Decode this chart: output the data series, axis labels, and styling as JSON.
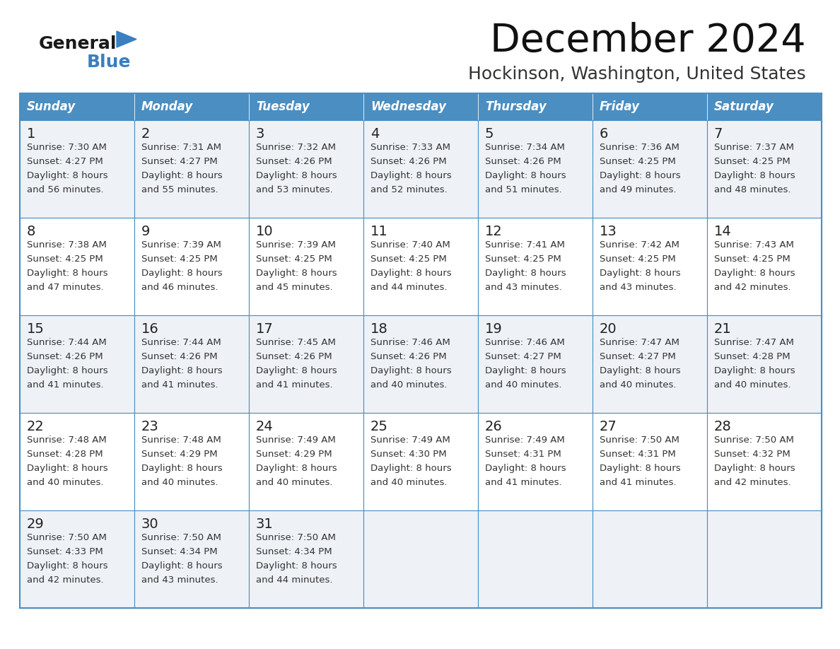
{
  "title": "December 2024",
  "subtitle": "Hockinson, Washington, United States",
  "days_of_week": [
    "Sunday",
    "Monday",
    "Tuesday",
    "Wednesday",
    "Thursday",
    "Friday",
    "Saturday"
  ],
  "header_bg": "#4a8ec2",
  "header_text": "#ffffff",
  "cell_bg_light": "#eef2f7",
  "cell_bg_white": "#ffffff",
  "border_color": "#4a8ec2",
  "day_num_color": "#222222",
  "cell_text_color": "#333333",
  "title_color": "#111111",
  "subtitle_color": "#333333",
  "logo_black": "#1a1a1a",
  "logo_blue": "#3a7fc1",
  "calendar_data": [
    [
      {
        "day": "1",
        "sunrise": "7:30 AM",
        "sunset": "4:27 PM",
        "dl1": "8 hours",
        "dl2": "and 56 minutes."
      },
      {
        "day": "2",
        "sunrise": "7:31 AM",
        "sunset": "4:27 PM",
        "dl1": "8 hours",
        "dl2": "and 55 minutes."
      },
      {
        "day": "3",
        "sunrise": "7:32 AM",
        "sunset": "4:26 PM",
        "dl1": "8 hours",
        "dl2": "and 53 minutes."
      },
      {
        "day": "4",
        "sunrise": "7:33 AM",
        "sunset": "4:26 PM",
        "dl1": "8 hours",
        "dl2": "and 52 minutes."
      },
      {
        "day": "5",
        "sunrise": "7:34 AM",
        "sunset": "4:26 PM",
        "dl1": "8 hours",
        "dl2": "and 51 minutes."
      },
      {
        "day": "6",
        "sunrise": "7:36 AM",
        "sunset": "4:25 PM",
        "dl1": "8 hours",
        "dl2": "and 49 minutes."
      },
      {
        "day": "7",
        "sunrise": "7:37 AM",
        "sunset": "4:25 PM",
        "dl1": "8 hours",
        "dl2": "and 48 minutes."
      }
    ],
    [
      {
        "day": "8",
        "sunrise": "7:38 AM",
        "sunset": "4:25 PM",
        "dl1": "8 hours",
        "dl2": "and 47 minutes."
      },
      {
        "day": "9",
        "sunrise": "7:39 AM",
        "sunset": "4:25 PM",
        "dl1": "8 hours",
        "dl2": "and 46 minutes."
      },
      {
        "day": "10",
        "sunrise": "7:39 AM",
        "sunset": "4:25 PM",
        "dl1": "8 hours",
        "dl2": "and 45 minutes."
      },
      {
        "day": "11",
        "sunrise": "7:40 AM",
        "sunset": "4:25 PM",
        "dl1": "8 hours",
        "dl2": "and 44 minutes."
      },
      {
        "day": "12",
        "sunrise": "7:41 AM",
        "sunset": "4:25 PM",
        "dl1": "8 hours",
        "dl2": "and 43 minutes."
      },
      {
        "day": "13",
        "sunrise": "7:42 AM",
        "sunset": "4:25 PM",
        "dl1": "8 hours",
        "dl2": "and 43 minutes."
      },
      {
        "day": "14",
        "sunrise": "7:43 AM",
        "sunset": "4:25 PM",
        "dl1": "8 hours",
        "dl2": "and 42 minutes."
      }
    ],
    [
      {
        "day": "15",
        "sunrise": "7:44 AM",
        "sunset": "4:26 PM",
        "dl1": "8 hours",
        "dl2": "and 41 minutes."
      },
      {
        "day": "16",
        "sunrise": "7:44 AM",
        "sunset": "4:26 PM",
        "dl1": "8 hours",
        "dl2": "and 41 minutes."
      },
      {
        "day": "17",
        "sunrise": "7:45 AM",
        "sunset": "4:26 PM",
        "dl1": "8 hours",
        "dl2": "and 41 minutes."
      },
      {
        "day": "18",
        "sunrise": "7:46 AM",
        "sunset": "4:26 PM",
        "dl1": "8 hours",
        "dl2": "and 40 minutes."
      },
      {
        "day": "19",
        "sunrise": "7:46 AM",
        "sunset": "4:27 PM",
        "dl1": "8 hours",
        "dl2": "and 40 minutes."
      },
      {
        "day": "20",
        "sunrise": "7:47 AM",
        "sunset": "4:27 PM",
        "dl1": "8 hours",
        "dl2": "and 40 minutes."
      },
      {
        "day": "21",
        "sunrise": "7:47 AM",
        "sunset": "4:28 PM",
        "dl1": "8 hours",
        "dl2": "and 40 minutes."
      }
    ],
    [
      {
        "day": "22",
        "sunrise": "7:48 AM",
        "sunset": "4:28 PM",
        "dl1": "8 hours",
        "dl2": "and 40 minutes."
      },
      {
        "day": "23",
        "sunrise": "7:48 AM",
        "sunset": "4:29 PM",
        "dl1": "8 hours",
        "dl2": "and 40 minutes."
      },
      {
        "day": "24",
        "sunrise": "7:49 AM",
        "sunset": "4:29 PM",
        "dl1": "8 hours",
        "dl2": "and 40 minutes."
      },
      {
        "day": "25",
        "sunrise": "7:49 AM",
        "sunset": "4:30 PM",
        "dl1": "8 hours",
        "dl2": "and 40 minutes."
      },
      {
        "day": "26",
        "sunrise": "7:49 AM",
        "sunset": "4:31 PM",
        "dl1": "8 hours",
        "dl2": "and 41 minutes."
      },
      {
        "day": "27",
        "sunrise": "7:50 AM",
        "sunset": "4:31 PM",
        "dl1": "8 hours",
        "dl2": "and 41 minutes."
      },
      {
        "day": "28",
        "sunrise": "7:50 AM",
        "sunset": "4:32 PM",
        "dl1": "8 hours",
        "dl2": "and 42 minutes."
      }
    ],
    [
      {
        "day": "29",
        "sunrise": "7:50 AM",
        "sunset": "4:33 PM",
        "dl1": "8 hours",
        "dl2": "and 42 minutes."
      },
      {
        "day": "30",
        "sunrise": "7:50 AM",
        "sunset": "4:34 PM",
        "dl1": "8 hours",
        "dl2": "and 43 minutes."
      },
      {
        "day": "31",
        "sunrise": "7:50 AM",
        "sunset": "4:34 PM",
        "dl1": "8 hours",
        "dl2": "and 44 minutes."
      },
      null,
      null,
      null,
      null
    ]
  ]
}
